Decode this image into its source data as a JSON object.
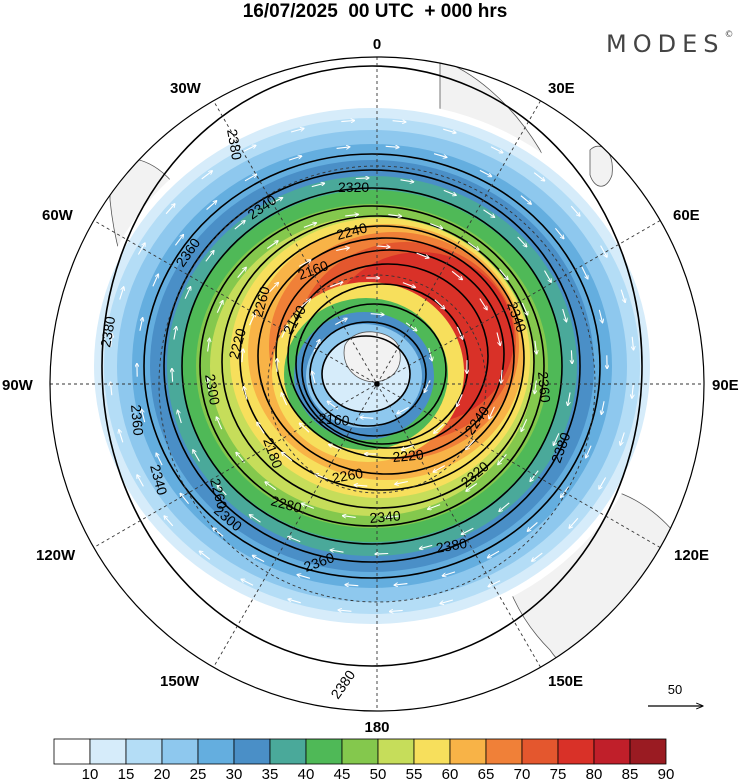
{
  "title": "16/07/2025  00 UTC  + 000 hrs",
  "brand": "MODES",
  "brand_mark": "©",
  "longitude_labels": [
    "0",
    "30E",
    "60E",
    "90E",
    "120E",
    "150E",
    "180",
    "150W",
    "120W",
    "90W",
    "60W",
    "30W"
  ],
  "contour_labels": [
    "2140",
    "2160",
    "2180",
    "2220",
    "2240",
    "2260",
    "2280",
    "2300",
    "2320",
    "2340",
    "2360",
    "2380"
  ],
  "vector_reference": "50",
  "colorbar": {
    "labels": [
      "10",
      "15",
      "20",
      "25",
      "30",
      "35",
      "40",
      "45",
      "50",
      "55",
      "60",
      "65",
      "70",
      "75",
      "80",
      "85",
      "90"
    ],
    "colors": [
      "#ffffff",
      "#d6ecfa",
      "#b4ddf6",
      "#8ec8ee",
      "#64aedf",
      "#4a8fc7",
      "#4aa99a",
      "#4fb957",
      "#84c84d",
      "#c6dd5a",
      "#f7df5c",
      "#f8b347",
      "#f08038",
      "#e4572e",
      "#d93128",
      "#c01f2a",
      "#9a1b22"
    ]
  },
  "colors": {
    "land": "#f2f2f2",
    "coast": "#555555",
    "contour": "#000000",
    "vector": "#ffffff"
  }
}
